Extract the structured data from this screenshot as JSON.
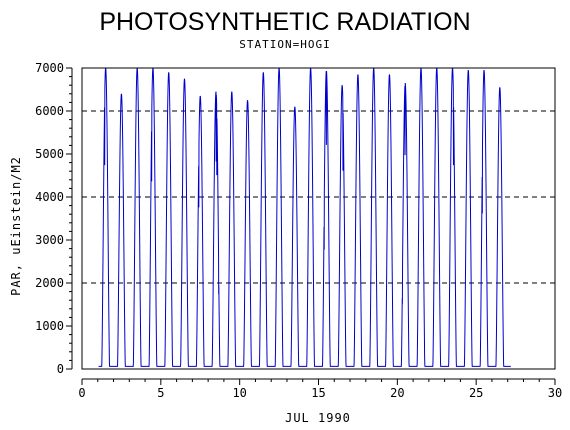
{
  "chart_data": {
    "type": "line",
    "title": "PHOTOSYNTHETIC RADIATION",
    "subtitle": "STATION=HOGI",
    "xlabel": "JUL 1990",
    "ylabel": "PAR, uEinstein/M2",
    "xlim": [
      0,
      30
    ],
    "ylim": [
      0,
      7000
    ],
    "xticks": [
      0,
      5,
      10,
      15,
      20,
      25,
      30
    ],
    "yticks": [
      0,
      1000,
      2000,
      3000,
      4000,
      5000,
      6000,
      7000
    ],
    "reference_lines_y": [
      2000,
      4000,
      6000
    ],
    "line_color": "#0000cc",
    "series": [
      {
        "daily_peaks": [
          {
            "day": 1,
            "peak": 7000
          },
          {
            "day": 2,
            "peak": 6400
          },
          {
            "day": 3,
            "peak": 7000
          },
          {
            "day": 4,
            "peak": 7000
          },
          {
            "day": 5,
            "peak": 6900
          },
          {
            "day": 6,
            "peak": 6750
          },
          {
            "day": 7,
            "peak": 6350
          },
          {
            "day": 8,
            "peak": 6450
          },
          {
            "day": 9,
            "peak": 6450
          },
          {
            "day": 10,
            "peak": 6250
          },
          {
            "day": 11,
            "peak": 6900
          },
          {
            "day": 12,
            "peak": 7000
          },
          {
            "day": 13,
            "peak": 6100
          },
          {
            "day": 14,
            "peak": 7000
          },
          {
            "day": 15,
            "peak": 6950
          },
          {
            "day": 16,
            "peak": 6600
          },
          {
            "day": 17,
            "peak": 6850
          },
          {
            "day": 18,
            "peak": 7000
          },
          {
            "day": 19,
            "peak": 6850
          },
          {
            "day": 20,
            "peak": 6650
          },
          {
            "day": 21,
            "peak": 7000
          },
          {
            "day": 22,
            "peak": 7000
          },
          {
            "day": 23,
            "peak": 7000
          },
          {
            "day": 24,
            "peak": 6950
          },
          {
            "day": 25,
            "peak": 6950
          },
          {
            "day": 26,
            "peak": 6550
          }
        ],
        "start_day": 1.05,
        "end_day": 27.2
      }
    ]
  }
}
